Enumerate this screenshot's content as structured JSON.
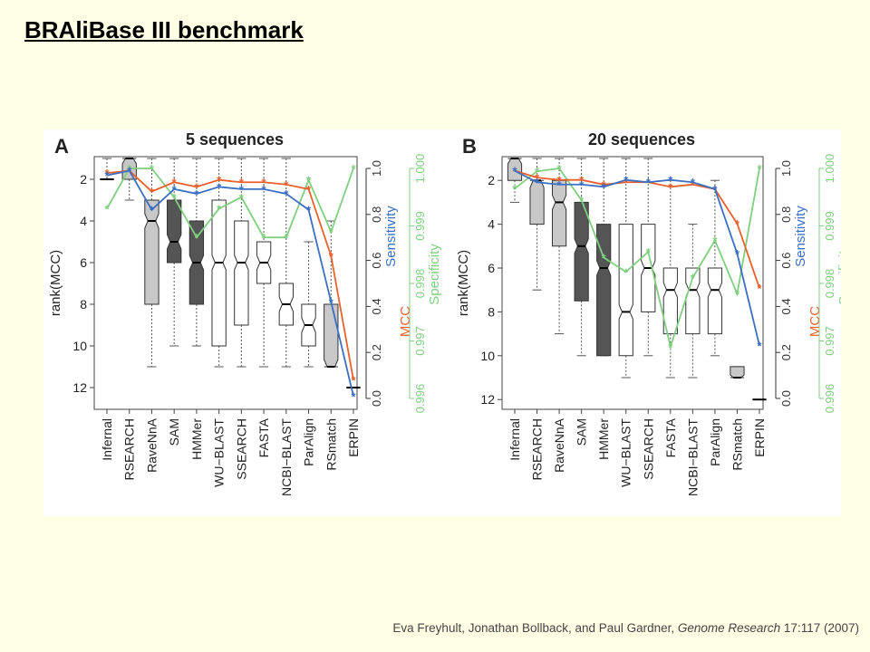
{
  "slide": {
    "title": "BRAliBase III benchmark",
    "citation_authors": "Eva Freyhult, Jonathan Bollback, and Paul Gardner, ",
    "citation_journal": "Genome Research",
    "citation_rest": " 17:117 (2007)"
  },
  "colors": {
    "background": "#ffffe6",
    "mcc": "#e8602c",
    "sensitivity": "#3a6fc4",
    "specificity": "#7fcf7f",
    "box_light": "#c8c8c8",
    "box_dark": "#555555",
    "box_white": "#ffffff"
  },
  "chart_data": [
    {
      "type": "box",
      "panel_label": "A",
      "title": "5 sequences",
      "ylabel": "rank(MCC)",
      "ylim": [
        12.6,
        0.4
      ],
      "yticks": [
        2,
        4,
        6,
        8,
        10,
        12
      ],
      "categories": [
        "Infernal",
        "RSEARCH",
        "RaveNnA",
        "SAM",
        "HMMer",
        "WU−BLAST",
        "SSEARCH",
        "FASTA",
        "NCBI−BLAST",
        "ParAlign",
        "RSmatch",
        "ERPIN"
      ],
      "boxes": [
        {
          "fill": "light",
          "whisker_low": 1,
          "q1": 2,
          "median": 2,
          "q3": 2,
          "whisker_high": 2
        },
        {
          "fill": "light",
          "whisker_low": 1,
          "q1": 1,
          "median": 1,
          "q3": 2,
          "whisker_high": 3
        },
        {
          "fill": "light",
          "whisker_low": 1,
          "q1": 3,
          "median": 4,
          "q3": 8,
          "whisker_high": 11
        },
        {
          "fill": "dark",
          "whisker_low": 1,
          "q1": 3,
          "median": 5,
          "q3": 6,
          "whisker_high": 10
        },
        {
          "fill": "dark",
          "whisker_low": 1,
          "q1": 4,
          "median": 6,
          "q3": 8,
          "whisker_high": 10
        },
        {
          "fill": "white",
          "whisker_low": 1,
          "q1": 3,
          "median": 6,
          "q3": 10,
          "whisker_high": 11
        },
        {
          "fill": "white",
          "whisker_low": 1,
          "q1": 4,
          "median": 6,
          "q3": 9,
          "whisker_high": 11
        },
        {
          "fill": "white",
          "whisker_low": 1,
          "q1": 5,
          "median": 6,
          "q3": 7,
          "whisker_high": 11
        },
        {
          "fill": "white",
          "whisker_low": 1,
          "q1": 7,
          "median": 8,
          "q3": 9,
          "whisker_high": 11
        },
        {
          "fill": "white",
          "whisker_low": 5,
          "q1": 8,
          "median": 9,
          "q3": 10,
          "whisker_high": 11
        },
        {
          "fill": "light",
          "whisker_low": 4,
          "q1": 8,
          "median": 11,
          "q3": 11,
          "whisker_high": 11
        },
        {
          "fill": "dark",
          "whisker_low": 12,
          "q1": 12,
          "median": 12,
          "q3": 12,
          "whisker_high": 12
        }
      ],
      "right_axes": [
        {
          "name": "Sensitivity",
          "color": "#3a6fc4",
          "secondary_name": "MCC",
          "secondary_color": "#e8602c",
          "range": [
            0.0,
            1.0
          ],
          "ticks": [
            "0.0",
            "0.2",
            "0.4",
            "0.6",
            "0.8",
            "1.0"
          ]
        },
        {
          "name": "Specificity",
          "color": "#7fcf7f",
          "range": [
            0.996,
            1.0
          ],
          "ticks": [
            "0.996",
            "0.997",
            "0.998",
            "0.999",
            "1.000"
          ]
        }
      ],
      "series": [
        {
          "name": "MCC",
          "axis": 0,
          "values": [
            0.98,
            0.99,
            0.9,
            0.94,
            0.92,
            0.95,
            0.94,
            0.94,
            0.93,
            0.91,
            0.62,
            0.08
          ]
        },
        {
          "name": "Sensitivity",
          "axis": 0,
          "values": [
            0.97,
            0.99,
            0.82,
            0.91,
            0.89,
            0.92,
            0.91,
            0.91,
            0.89,
            0.82,
            0.42,
            0.01
          ]
        },
        {
          "name": "Specificity",
          "axis": 1,
          "values": [
            0.9993,
            1.0,
            1.0,
            0.9995,
            0.9988,
            0.9993,
            0.9995,
            0.9988,
            0.9988,
            0.9998,
            0.9989,
            1.0
          ]
        }
      ]
    },
    {
      "type": "box",
      "panel_label": "B",
      "title": "20 sequences",
      "ylabel": "rank(MCC)",
      "ylim": [
        12.6,
        0.4
      ],
      "yticks": [
        2,
        4,
        6,
        8,
        10,
        12
      ],
      "categories": [
        "Infernal",
        "RSEARCH",
        "RaveNnA",
        "SAM",
        "HMMer",
        "WU−BLAST",
        "SSEARCH",
        "FASTA",
        "NCBI−BLAST",
        "ParAlign",
        "RSmatch",
        "ERPIN"
      ],
      "boxes": [
        {
          "fill": "light",
          "whisker_low": 1,
          "q1": 1,
          "median": 1,
          "q3": 2,
          "whisker_high": 3
        },
        {
          "fill": "light",
          "whisker_low": 1,
          "q1": 2,
          "median": 2,
          "q3": 4,
          "whisker_high": 7
        },
        {
          "fill": "light",
          "whisker_low": 1,
          "q1": 2,
          "median": 3,
          "q3": 5,
          "whisker_high": 9
        },
        {
          "fill": "dark",
          "whisker_low": 1,
          "q1": 3,
          "median": 5,
          "q3": 7.5,
          "whisker_high": 10
        },
        {
          "fill": "dark",
          "whisker_low": 1,
          "q1": 4,
          "median": 6,
          "q3": 10,
          "whisker_high": 10
        },
        {
          "fill": "white",
          "whisker_low": 1,
          "q1": 4,
          "median": 8,
          "q3": 10,
          "whisker_high": 11
        },
        {
          "fill": "white",
          "whisker_low": 1,
          "q1": 4,
          "median": 6,
          "q3": 8,
          "whisker_high": 10
        },
        {
          "fill": "white",
          "whisker_low": 2,
          "q1": 6,
          "median": 7,
          "q3": 9,
          "whisker_high": 11
        },
        {
          "fill": "white",
          "whisker_low": 4,
          "q1": 6,
          "median": 7,
          "q3": 9,
          "whisker_high": 11
        },
        {
          "fill": "white",
          "whisker_low": 2,
          "q1": 6,
          "median": 7,
          "q3": 9,
          "whisker_high": 10
        },
        {
          "fill": "light",
          "whisker_low": 10.5,
          "q1": 10.5,
          "median": 11,
          "q3": 11,
          "whisker_high": 11
        },
        {
          "fill": "dark",
          "whisker_low": 12,
          "q1": 12,
          "median": 12,
          "q3": 12,
          "whisker_high": 12
        }
      ],
      "right_axes": [
        {
          "name": "Sensitivity",
          "color": "#3a6fc4",
          "secondary_name": "MCC",
          "secondary_color": "#e8602c",
          "range": [
            0.0,
            1.0
          ],
          "ticks": [
            "0.0",
            "0.2",
            "0.4",
            "0.6",
            "0.8",
            "1.0"
          ]
        },
        {
          "name": "Specificity",
          "color": "#7fcf7f",
          "range": [
            0.996,
            1.0
          ],
          "ticks": [
            "0.996",
            "0.997",
            "0.998",
            "0.999",
            "1.000"
          ]
        }
      ],
      "series": [
        {
          "name": "MCC",
          "axis": 0,
          "values": [
            0.99,
            0.96,
            0.95,
            0.95,
            0.93,
            0.94,
            0.94,
            0.92,
            0.93,
            0.91,
            0.76,
            0.48
          ]
        },
        {
          "name": "Sensitivity",
          "axis": 0,
          "values": [
            0.99,
            0.94,
            0.93,
            0.93,
            0.92,
            0.95,
            0.94,
            0.95,
            0.94,
            0.91,
            0.63,
            0.23
          ]
        },
        {
          "name": "Specificity",
          "axis": 1,
          "values": [
            0.99965,
            0.99995,
            1.0,
            0.99945,
            0.99845,
            0.9982,
            0.99855,
            0.9969,
            0.9981,
            0.99875,
            0.99782,
            1.0
          ]
        }
      ]
    }
  ]
}
